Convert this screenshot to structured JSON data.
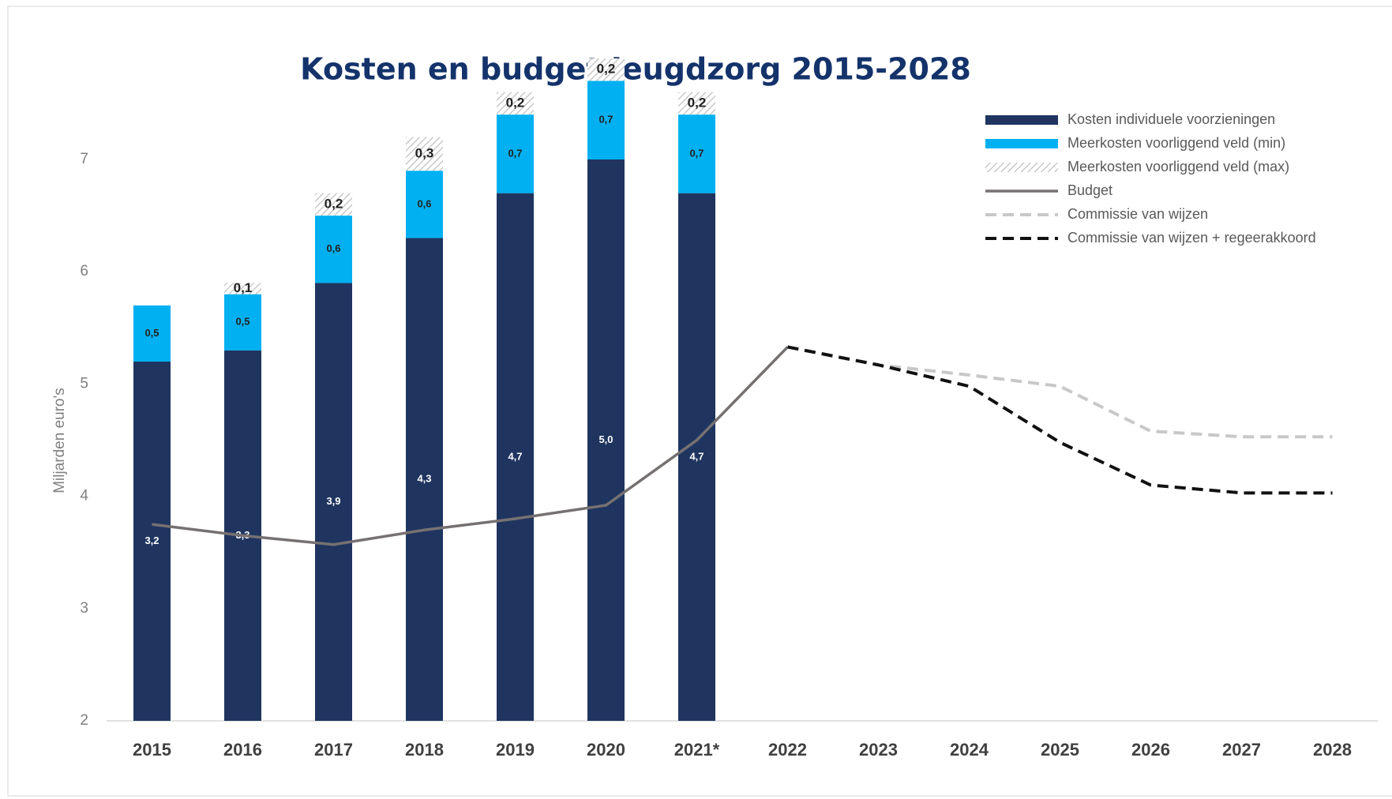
{
  "chart_data": {
    "type": "bar",
    "title": "Kosten en budget Jeugdzorg 2015-2028",
    "y_label": "Miljarden euro's",
    "categories": [
      "2015",
      "2016",
      "2017",
      "2018",
      "2019",
      "2020",
      "2021*",
      "2022",
      "2023",
      "2024",
      "2025",
      "2026",
      "2027",
      "2028"
    ],
    "ylim": [
      2,
      7
    ],
    "yticks": [
      2,
      3,
      4,
      5,
      6,
      7
    ],
    "series": [
      {
        "name": "Kosten individuele voorzieningen",
        "type": "bar",
        "color": "#1f3560",
        "values": [
          3.2,
          3.3,
          3.9,
          4.3,
          4.7,
          5.0,
          4.7,
          null,
          null,
          null,
          null,
          null,
          null,
          null
        ],
        "value_labels": [
          "3,2",
          "3,3",
          "3,9",
          "4,3",
          "4,7",
          "5,0",
          "4,7",
          null,
          null,
          null,
          null,
          null,
          null,
          null
        ]
      },
      {
        "name": "Meerkosten voorliggend veld (min)",
        "type": "bar",
        "color": "#00b0f0",
        "values": [
          0.5,
          0.5,
          0.6,
          0.6,
          0.7,
          0.7,
          0.7,
          null,
          null,
          null,
          null,
          null,
          null,
          null
        ],
        "value_labels": [
          "0,5",
          "0,5",
          "0,6",
          "0,6",
          "0,7",
          "0,7",
          "0,7",
          null,
          null,
          null,
          null,
          null,
          null,
          null
        ]
      },
      {
        "name": "Meerkosten voorliggend veld (max)",
        "type": "bar",
        "color": "#bfbfbf",
        "hatch": true,
        "values": [
          null,
          0.1,
          0.2,
          0.3,
          0.2,
          0.2,
          0.2,
          null,
          null,
          null,
          null,
          null,
          null,
          null
        ],
        "value_labels": [
          null,
          "0,1",
          "0,2",
          "0,3",
          "0,2",
          "0,2",
          "0,2",
          null,
          null,
          null,
          null,
          null,
          null,
          null
        ]
      },
      {
        "name": "Budget",
        "type": "line",
        "color": "#767171",
        "dash": false,
        "values": [
          3.75,
          3.65,
          3.57,
          3.7,
          3.8,
          3.92,
          4.5,
          5.33,
          null,
          null,
          null,
          null,
          null,
          null
        ]
      },
      {
        "name": "Commissie van wijzen",
        "type": "line",
        "color": "#c8c8c8",
        "dash": true,
        "values": [
          null,
          null,
          null,
          null,
          null,
          null,
          null,
          5.33,
          5.17,
          5.08,
          4.98,
          4.58,
          4.53,
          4.53
        ]
      },
      {
        "name": "Commissie van wijzen + regeerakkoord",
        "type": "line",
        "color": "#111111",
        "dash": true,
        "values": [
          null,
          null,
          null,
          null,
          null,
          null,
          null,
          5.33,
          5.17,
          4.98,
          4.48,
          4.1,
          4.03,
          4.03
        ]
      }
    ]
  }
}
